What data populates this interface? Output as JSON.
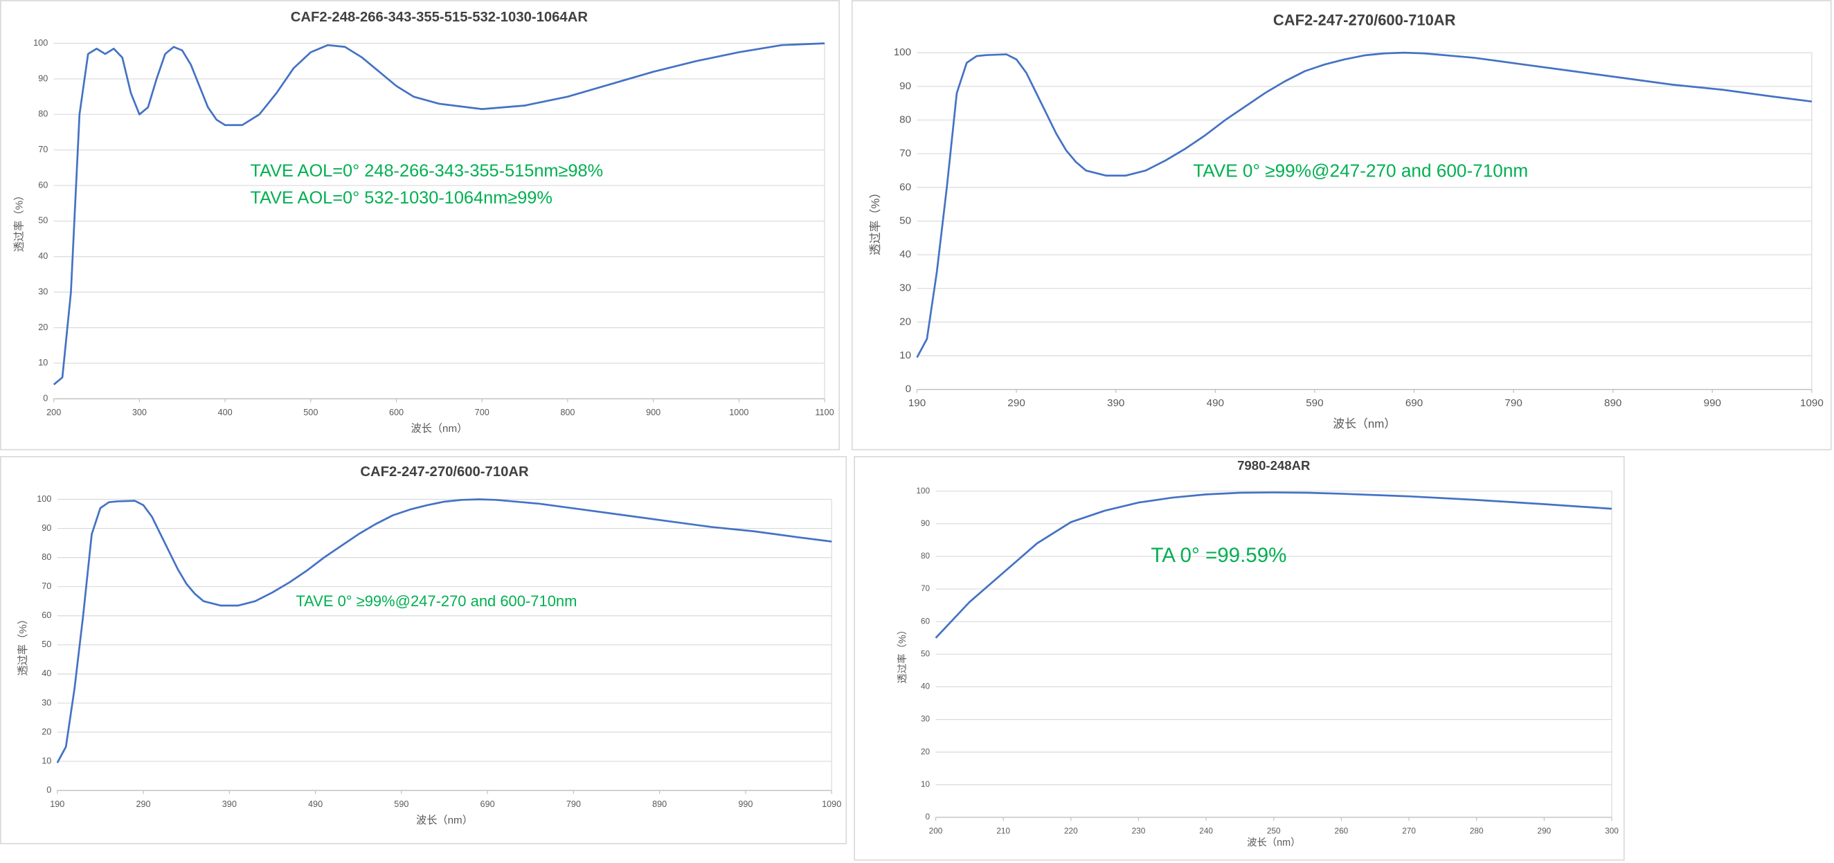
{
  "chart_data": [
    {
      "type": "line",
      "title": "CAF2-248-266-343-355-515-532-1030-1064AR",
      "x_label": "波长（nm）",
      "y_label": "透过率（%）",
      "annotations": [
        "TAVE AOL=0°  248-266-343-355-515nm≥98%",
        "TAVE AOL=0°  532-1030-1064nm≥99%"
      ],
      "color": "#4472c4",
      "grid": true,
      "x": [
        200,
        210,
        220,
        230,
        240,
        250,
        260,
        270,
        280,
        290,
        300,
        310,
        320,
        330,
        340,
        350,
        360,
        370,
        380,
        390,
        400,
        420,
        440,
        460,
        480,
        500,
        520,
        540,
        560,
        580,
        600,
        620,
        650,
        700,
        750,
        800,
        850,
        900,
        950,
        1000,
        1050,
        1100
      ],
      "values": [
        4,
        6,
        30,
        80,
        97,
        98.5,
        97,
        98.5,
        96,
        86,
        80,
        82,
        90,
        97,
        99,
        98,
        94,
        88,
        82,
        78.5,
        77,
        77,
        80,
        86,
        93,
        97.5,
        99.5,
        99,
        96,
        92,
        88,
        85,
        83,
        81.5,
        82.5,
        85,
        88.5,
        92,
        95,
        97.5,
        99.5,
        100
      ],
      "xlim": [
        200,
        1100
      ],
      "xticks": [
        200,
        300,
        400,
        500,
        600,
        700,
        800,
        900,
        1000,
        1100
      ],
      "ylim": [
        0,
        100
      ],
      "yticks": [
        0,
        10,
        20,
        30,
        40,
        50,
        60,
        70,
        80,
        90,
        100
      ]
    },
    {
      "type": "line",
      "title": "CAF2-247-270/600-710AR",
      "x_label": "波长（nm）",
      "y_label": "透过率（%）",
      "annotations": [
        "TAVE 0°  ≥99%@247-270 and 600-710nm"
      ],
      "color": "#4472c4",
      "grid": true,
      "x": [
        190,
        200,
        210,
        220,
        230,
        240,
        250,
        260,
        280,
        290,
        300,
        310,
        320,
        330,
        340,
        350,
        360,
        380,
        400,
        420,
        440,
        460,
        480,
        500,
        520,
        540,
        560,
        580,
        600,
        620,
        640,
        660,
        680,
        700,
        750,
        800,
        850,
        900,
        950,
        1000,
        1050,
        1090
      ],
      "values": [
        9.5,
        15,
        35,
        60,
        88,
        97,
        99,
        99.3,
        99.5,
        98,
        94,
        88,
        82,
        76,
        71,
        67.5,
        65,
        63.5,
        63.5,
        65,
        68,
        71.5,
        75.5,
        80,
        84,
        88,
        91.5,
        94.5,
        96.5,
        98,
        99.2,
        99.8,
        100,
        99.8,
        98.5,
        96.5,
        94.5,
        92.5,
        90.5,
        89,
        87,
        85.5
      ],
      "xlim": [
        190,
        1090
      ],
      "xticks": [
        190,
        290,
        390,
        490,
        590,
        690,
        790,
        890,
        990,
        1090
      ],
      "ylim": [
        0,
        100
      ],
      "yticks": [
        0,
        10,
        20,
        30,
        40,
        50,
        60,
        70,
        80,
        90,
        100
      ]
    },
    {
      "type": "line",
      "title": "CAF2-247-270/600-710AR",
      "x_label": "波长（nm）",
      "y_label": "透过率（%）",
      "annotations": [
        "TAVE 0°  ≥99%@247-270 and 600-710nm"
      ],
      "color": "#4472c4",
      "grid": true,
      "x": [
        190,
        200,
        210,
        220,
        230,
        240,
        250,
        260,
        280,
        290,
        300,
        310,
        320,
        330,
        340,
        350,
        360,
        380,
        400,
        420,
        440,
        460,
        480,
        500,
        520,
        540,
        560,
        580,
        600,
        620,
        640,
        660,
        680,
        700,
        750,
        800,
        850,
        900,
        950,
        1000,
        1050,
        1090
      ],
      "values": [
        9.5,
        15,
        35,
        60,
        88,
        97,
        99,
        99.3,
        99.5,
        98,
        94,
        88,
        82,
        76,
        71,
        67.5,
        65,
        63.5,
        63.5,
        65,
        68,
        71.5,
        75.5,
        80,
        84,
        88,
        91.5,
        94.5,
        96.5,
        98,
        99.2,
        99.8,
        100,
        99.8,
        98.5,
        96.5,
        94.5,
        92.5,
        90.5,
        89,
        87,
        85.5
      ],
      "xlim": [
        190,
        1090
      ],
      "xticks": [
        190,
        290,
        390,
        490,
        590,
        690,
        790,
        890,
        990,
        1090
      ],
      "ylim": [
        0,
        100
      ],
      "yticks": [
        0,
        10,
        20,
        30,
        40,
        50,
        60,
        70,
        80,
        90,
        100
      ]
    },
    {
      "type": "line",
      "title": "7980-248AR",
      "x_label": "波长（nm）",
      "y_label": "透过率（%）",
      "annotations": [
        "TA 0°  =99.59%"
      ],
      "color": "#4472c4",
      "grid": true,
      "x": [
        200,
        205,
        210,
        215,
        220,
        225,
        230,
        235,
        240,
        245,
        250,
        255,
        260,
        270,
        280,
        290,
        300
      ],
      "values": [
        55,
        66,
        75,
        84,
        90.5,
        94,
        96.5,
        98,
        99,
        99.5,
        99.6,
        99.5,
        99.2,
        98.4,
        97.3,
        96,
        94.6
      ],
      "xlim": [
        200,
        300
      ],
      "xticks": [
        200,
        210,
        220,
        230,
        240,
        250,
        260,
        270,
        280,
        290,
        300
      ],
      "ylim": [
        0,
        100
      ],
      "yticks": [
        0,
        10,
        20,
        30,
        40,
        50,
        60,
        70,
        80,
        90,
        100
      ]
    }
  ]
}
